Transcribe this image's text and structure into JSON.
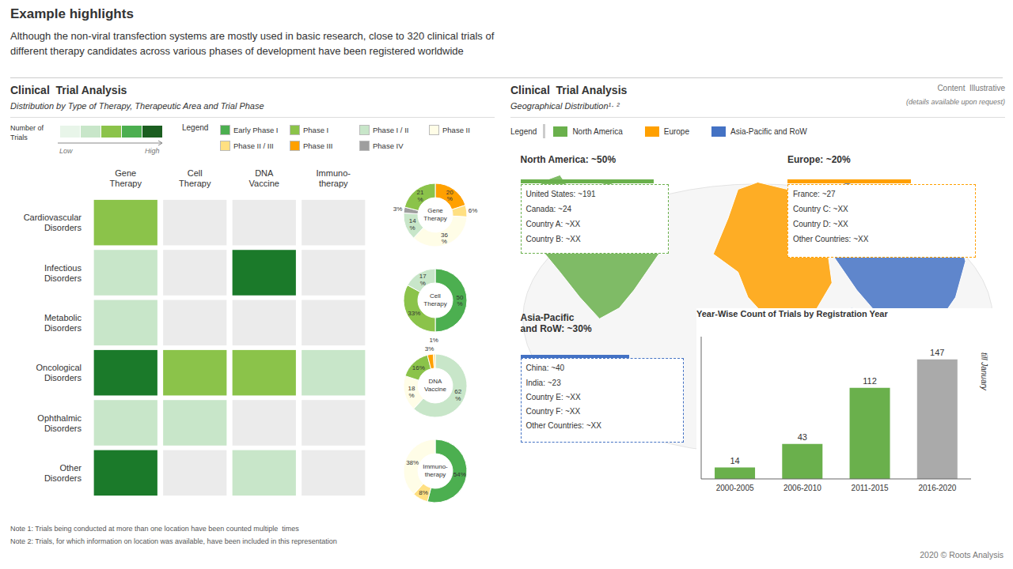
{
  "title": "Example highlights",
  "subtitle": "Although the non-viral transfection systems are mostly used in basic research, close to 320 clinical trials of\ndifferent therapy candidates across various phases of development have been registered worldwide",
  "notes": [
    "Note 1: Trials being conducted at more than one location have been counted multiple  times",
    "Note 2: Trials, for which information on location was available, have been included in this representation"
  ],
  "footer": "2020 © Roots Analysis",
  "chart_data": [
    {
      "type": "heatmap",
      "title": "Clinical  Trial Analysis",
      "subtitle": "Distribution by Type of Therapy, Therapeutic Area and Trial Phase",
      "categories": [
        "Gene\nTherapy",
        "Cell\nTherapy",
        "DNA\nVaccine",
        "Immuno-\ntherapy"
      ],
      "rows": [
        "Cardiovascular\nDisorders",
        "Infectious\nDisorders",
        "Metabolic\nDisorders",
        "Oncological\nDisorders",
        "Ophthalmic\nDisorders",
        "Other\nDisorders"
      ],
      "cells": [
        [
          3,
          1,
          1,
          1
        ],
        [
          2,
          1,
          5,
          1
        ],
        [
          2,
          1,
          1,
          1
        ],
        [
          5,
          3,
          3,
          2
        ],
        [
          2,
          2,
          1,
          1
        ],
        [
          5,
          1,
          2,
          1
        ]
      ],
      "cell_colors": [
        {
          "min": 5,
          "color": "#1b7a2a"
        },
        {
          "min": 4,
          "color": "#4caf50"
        },
        {
          "min": 3,
          "color": "#8bc34a"
        },
        {
          "min": 2,
          "color": "#c8e6c9"
        },
        {
          "color": "#ebebeb"
        }
      ],
      "colorbar": {
        "title": "Number of\nTrials",
        "colors": [
          "#e8f5e9",
          "#c8e6c9",
          "#8bc34a",
          "#4caf50",
          "#1b5e20"
        ],
        "labels": [
          "Low",
          "High"
        ]
      }
    },
    {
      "type": "legend",
      "title": "Legend",
      "series": [
        {
          "name": "Early Phase I",
          "color": "#4caf50"
        },
        {
          "name": "Phase I",
          "color": "#8bc34a"
        },
        {
          "name": "Phase I / II",
          "color": "#c8e6c9"
        },
        {
          "name": "Phase II",
          "color": "#fffde7"
        },
        {
          "name": "Phase II / III",
          "color": "#ffe082"
        },
        {
          "name": "Phase III",
          "color": "#ffa000"
        },
        {
          "name": "Phase IV",
          "color": "#9e9e9e"
        }
      ]
    },
    {
      "type": "donut",
      "title": "Gene\nTherapy",
      "values": [
        20,
        6,
        36,
        14,
        3,
        21
      ],
      "value_labels": [
        "20\n%",
        "6%",
        "36\n%",
        "14\n%",
        "3%",
        "21\n%"
      ],
      "colors": [
        "#ffa000",
        "#ffe082",
        "#fffde7",
        "#c8e6c9",
        "#9e9e9e",
        "#8bc34a"
      ]
    },
    {
      "type": "donut",
      "title": "Cell\nTherapy",
      "values": [
        50,
        33,
        17
      ],
      "value_labels": [
        "50\n%",
        "33%",
        "17\n%"
      ],
      "colors": [
        "#4caf50",
        "#8bc34a",
        "#c8e6c9"
      ]
    },
    {
      "type": "donut",
      "title": "DNA\nVaccine",
      "values": [
        62,
        18,
        16,
        3,
        1
      ],
      "value_labels": [
        "62\n%",
        "18\n%",
        "16%",
        "3%",
        "1%"
      ],
      "colors": [
        "#c8e6c9",
        "#fffde7",
        "#8bc34a",
        "#ffa000",
        "#ffe082"
      ]
    },
    {
      "type": "donut",
      "title": "Immuno-\ntherapy",
      "values": [
        54,
        8,
        38
      ],
      "value_labels": [
        "54%",
        "8%",
        "38%"
      ],
      "colors": [
        "#4caf50",
        "#ffe082",
        "#fffde7"
      ]
    },
    {
      "type": "map",
      "title": "Clinical  Trial Analysis",
      "subtitle": "Geographical Distribution¹· ²",
      "annotations": [
        "Content  Illustrative",
        "(details available upon request)"
      ],
      "legend_title": "Legend",
      "series": [
        {
          "name": "North America",
          "color": "#6ab04c",
          "title": "North America: ~50%",
          "labels": [
            "United States: ~191",
            "Canada: ~24",
            "Country A: ~XX",
            "Country B: ~XX"
          ]
        },
        {
          "name": "Europe",
          "color": "#ffa000",
          "title": "Europe: ~20%",
          "labels": [
            "France: ~27",
            "Country C: ~XX",
            "Country D: ~XX",
            "Other Countries: ~XX"
          ]
        },
        {
          "name": "Asia-Pacific and RoW",
          "color": "#4472c4",
          "title": "Asia-Pacific\nand RoW: ~30%",
          "labels": [
            "China: ~40",
            "India: ~23",
            "Country E: ~XX",
            "Country F: ~XX",
            "Other Countries: ~XX"
          ]
        }
      ]
    },
    {
      "type": "bar",
      "title": "Year-Wise Count of Trials by Registration Year",
      "categories": [
        "2000-2005",
        "2006-2010",
        "2011-2015",
        "2016-2020"
      ],
      "values": [
        14,
        43,
        112,
        147
      ],
      "colors": [
        "#6ab04c",
        "#6ab04c",
        "#6ab04c",
        "#aaaaaa"
      ],
      "ylim": [
        0,
        175
      ],
      "tick_labels": "x",
      "data_labels": true,
      "annotations": [
        "till January"
      ]
    }
  ]
}
